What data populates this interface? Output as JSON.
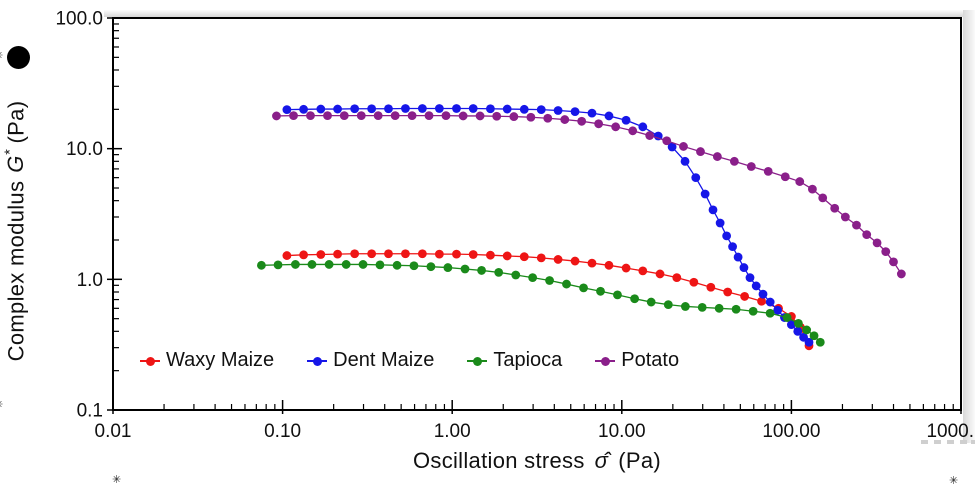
{
  "axes": {
    "x": {
      "title_prefix": "Oscillation stress",
      "title_symbol": "σ̂",
      "title_units": "(Pa)"
    },
    "y": {
      "title_prefix": "Complex modulus",
      "title_symbol": "G",
      "title_symbol_sup": "*",
      "title_units": "(Pa)",
      "marker_icon": "filled-circle"
    }
  },
  "legend": [
    {
      "label": "Waxy Maize",
      "color": "#ee1515"
    },
    {
      "label": "Dent Maize",
      "color": "#1616e8"
    },
    {
      "label": "Tapioca",
      "color": "#1a8a1a"
    },
    {
      "label": "Potato",
      "color": "#8a1f8a"
    }
  ],
  "decorations": {
    "fragment": "✳"
  },
  "chart_data": {
    "type": "line",
    "x_scale": "log",
    "y_scale": "log",
    "xlim": [
      0.01,
      1000
    ],
    "ylim": [
      0.1,
      100
    ],
    "xlabel": "Oscillation stress σ̂ (Pa)",
    "ylabel": "Complex modulus G* (Pa)",
    "grid": false,
    "legend_position": "inside-bottom-left",
    "marker": "filled-circle",
    "x_ticks": [
      {
        "v": 0.01,
        "label": "0.01"
      },
      {
        "v": 0.1,
        "label": "0.10"
      },
      {
        "v": 1,
        "label": "1.00"
      },
      {
        "v": 10,
        "label": "10.00"
      },
      {
        "v": 100,
        "label": "100.00"
      },
      {
        "v": 1000,
        "label": "1000.",
        "align": "end"
      }
    ],
    "y_ticks": [
      {
        "v": 100,
        "label": "100.0"
      },
      {
        "v": 10,
        "label": "10.0"
      },
      {
        "v": 1,
        "label": "1.0"
      },
      {
        "v": 0.1,
        "label": "0.1"
      }
    ],
    "series": [
      {
        "name": "Waxy Maize",
        "color": "#ee1515",
        "points": [
          [
            0.106,
            1.52
          ],
          [
            0.133,
            1.54
          ],
          [
            0.168,
            1.55
          ],
          [
            0.211,
            1.56
          ],
          [
            0.266,
            1.57
          ],
          [
            0.335,
            1.57
          ],
          [
            0.421,
            1.57
          ],
          [
            0.53,
            1.57
          ],
          [
            0.667,
            1.57
          ],
          [
            0.84,
            1.56
          ],
          [
            1.06,
            1.56
          ],
          [
            1.33,
            1.55
          ],
          [
            1.68,
            1.53
          ],
          [
            2.11,
            1.51
          ],
          [
            2.66,
            1.49
          ],
          [
            3.35,
            1.46
          ],
          [
            4.21,
            1.42
          ],
          [
            5.3,
            1.38
          ],
          [
            6.67,
            1.33
          ],
          [
            8.4,
            1.28
          ],
          [
            10.6,
            1.22
          ],
          [
            13.3,
            1.16
          ],
          [
            16.8,
            1.1
          ],
          [
            21.1,
            1.03
          ],
          [
            26.6,
            0.95
          ],
          [
            33.5,
            0.87
          ],
          [
            42.1,
            0.8
          ],
          [
            53,
            0.74
          ],
          [
            66.7,
            0.68
          ],
          [
            84,
            0.6
          ],
          [
            100,
            0.52
          ],
          [
            113,
            0.43
          ],
          [
            127,
            0.31
          ]
        ]
      },
      {
        "name": "Dent Maize",
        "color": "#1616e8",
        "points": [
          [
            0.106,
            19.9
          ],
          [
            0.133,
            20.0
          ],
          [
            0.168,
            20.1
          ],
          [
            0.211,
            20.1
          ],
          [
            0.266,
            20.2
          ],
          [
            0.335,
            20.2
          ],
          [
            0.421,
            20.2
          ],
          [
            0.53,
            20.3
          ],
          [
            0.667,
            20.3
          ],
          [
            0.84,
            20.3
          ],
          [
            1.06,
            20.3
          ],
          [
            1.33,
            20.3
          ],
          [
            1.68,
            20.2
          ],
          [
            2.11,
            20.1
          ],
          [
            2.66,
            20.0
          ],
          [
            3.35,
            19.9
          ],
          [
            4.21,
            19.6
          ],
          [
            5.3,
            19.2
          ],
          [
            6.67,
            18.7
          ],
          [
            8.4,
            17.8
          ],
          [
            10.6,
            16.5
          ],
          [
            13.3,
            14.7
          ],
          [
            16.4,
            12.5
          ],
          [
            19.8,
            10.3
          ],
          [
            23.6,
            8.0
          ],
          [
            27.3,
            6.0
          ],
          [
            31,
            4.5
          ],
          [
            34.5,
            3.4
          ],
          [
            38,
            2.7
          ],
          [
            41.5,
            2.15
          ],
          [
            45,
            1.78
          ],
          [
            48.5,
            1.48
          ],
          [
            52.5,
            1.23
          ],
          [
            57,
            1.03
          ],
          [
            62,
            0.89
          ],
          [
            68,
            0.77
          ],
          [
            75,
            0.67
          ],
          [
            83,
            0.58
          ],
          [
            91,
            0.51
          ],
          [
            100,
            0.45
          ],
          [
            109,
            0.4
          ],
          [
            118,
            0.36
          ],
          [
            127,
            0.33
          ]
        ]
      },
      {
        "name": "Tapioca",
        "color": "#1a8a1a",
        "points": [
          [
            0.075,
            1.28
          ],
          [
            0.094,
            1.29
          ],
          [
            0.119,
            1.3
          ],
          [
            0.149,
            1.3
          ],
          [
            0.188,
            1.3
          ],
          [
            0.237,
            1.3
          ],
          [
            0.298,
            1.3
          ],
          [
            0.375,
            1.29
          ],
          [
            0.473,
            1.28
          ],
          [
            0.595,
            1.27
          ],
          [
            0.749,
            1.25
          ],
          [
            0.943,
            1.23
          ],
          [
            1.19,
            1.2
          ],
          [
            1.49,
            1.17
          ],
          [
            1.88,
            1.13
          ],
          [
            2.37,
            1.08
          ],
          [
            2.98,
            1.03
          ],
          [
            3.75,
            0.98
          ],
          [
            4.72,
            0.92
          ],
          [
            5.95,
            0.86
          ],
          [
            7.49,
            0.81
          ],
          [
            9.43,
            0.76
          ],
          [
            11.9,
            0.71
          ],
          [
            14.9,
            0.67
          ],
          [
            18.8,
            0.64
          ],
          [
            23.7,
            0.62
          ],
          [
            29.8,
            0.61
          ],
          [
            37.5,
            0.6
          ],
          [
            47.2,
            0.59
          ],
          [
            59.5,
            0.57
          ],
          [
            74.9,
            0.55
          ],
          [
            94.3,
            0.51
          ],
          [
            110,
            0.46
          ],
          [
            123,
            0.41
          ],
          [
            136,
            0.37
          ],
          [
            148,
            0.33
          ]
        ]
      },
      {
        "name": "Potato",
        "color": "#8a1f8a",
        "points": [
          [
            0.092,
            17.8
          ],
          [
            0.116,
            17.9
          ],
          [
            0.146,
            17.9
          ],
          [
            0.184,
            17.9
          ],
          [
            0.231,
            17.9
          ],
          [
            0.291,
            17.9
          ],
          [
            0.366,
            17.9
          ],
          [
            0.461,
            17.9
          ],
          [
            0.58,
            17.9
          ],
          [
            0.73,
            17.9
          ],
          [
            0.919,
            17.9
          ],
          [
            1.16,
            17.8
          ],
          [
            1.46,
            17.8
          ],
          [
            1.83,
            17.7
          ],
          [
            2.31,
            17.6
          ],
          [
            2.91,
            17.4
          ],
          [
            3.66,
            17.1
          ],
          [
            4.61,
            16.7
          ],
          [
            5.8,
            16.2
          ],
          [
            7.3,
            15.5
          ],
          [
            9.2,
            14.7
          ],
          [
            11.6,
            13.7
          ],
          [
            14.6,
            12.6
          ],
          [
            18.4,
            11.5
          ],
          [
            23.1,
            10.4
          ],
          [
            29.1,
            9.5
          ],
          [
            36.6,
            8.7
          ],
          [
            46.1,
            8.0
          ],
          [
            58,
            7.3
          ],
          [
            73,
            6.7
          ],
          [
            92,
            6.1
          ],
          [
            112,
            5.6
          ],
          [
            133,
            4.9
          ],
          [
            153,
            4.2
          ],
          [
            180,
            3.5
          ],
          [
            208,
            3.0
          ],
          [
            242,
            2.6
          ],
          [
            278,
            2.2
          ],
          [
            320,
            1.9
          ],
          [
            360,
            1.63
          ],
          [
            400,
            1.36
          ],
          [
            445,
            1.1
          ]
        ]
      }
    ]
  }
}
